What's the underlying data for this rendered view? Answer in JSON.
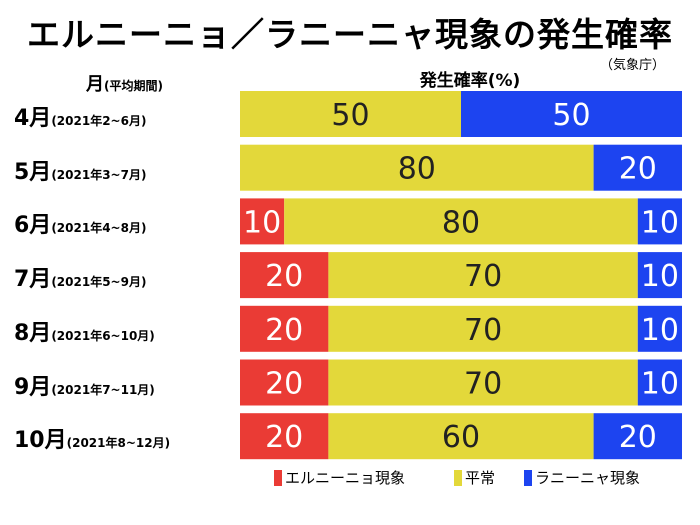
{
  "title": "エルニーニョ／ラニーニャ現象の発生確率",
  "source": "（気象庁）",
  "ylabel": {
    "main": "月",
    "sub": "(平均期間)"
  },
  "xlabel": "発生確率(%)",
  "colors": {
    "el_nino": "#ea3b35",
    "normal": "#e3d83a",
    "la_nina": "#1d44f0",
    "text_dark": "#222222",
    "text_light": "#ffffff"
  },
  "chart_data": {
    "type": "bar",
    "stacked": true,
    "orientation": "horizontal",
    "title": "エルニーニョ／ラニーニャ現象の発生確率",
    "xlabel": "発生確率(%)",
    "ylabel": "月(平均期間)",
    "xlim": [
      0,
      100
    ],
    "categories": [
      {
        "month": "4月",
        "period": "(2021年2~6月)"
      },
      {
        "month": "5月",
        "period": "(2021年3~7月)"
      },
      {
        "month": "6月",
        "period": "(2021年4~8月)"
      },
      {
        "month": "7月",
        "period": "(2021年5~9月)"
      },
      {
        "month": "8月",
        "period": "(2021年6~10月)"
      },
      {
        "month": "9月",
        "period": "(2021年7~11月)"
      },
      {
        "month": "10月",
        "period": "(2021年8~12月)"
      }
    ],
    "series": [
      {
        "key": "el_nino",
        "name": "エルニーニョ現象",
        "values": [
          0,
          0,
          10,
          20,
          20,
          20,
          20
        ]
      },
      {
        "key": "normal",
        "name": "平常",
        "values": [
          50,
          80,
          80,
          70,
          70,
          70,
          60
        ]
      },
      {
        "key": "la_nina",
        "name": "ラニーニャ現象",
        "values": [
          50,
          20,
          10,
          10,
          10,
          10,
          20
        ]
      }
    ],
    "legend_position": "bottom"
  }
}
